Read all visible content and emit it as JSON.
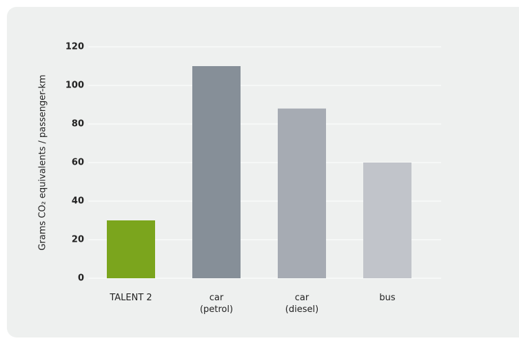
{
  "chart_data": {
    "type": "bar",
    "y_label": "Grams CO₂ equivalents / passenger-km",
    "categories": [
      "TALENT 2",
      "car\n(petrol)",
      "car\n(diesel)",
      "bus"
    ],
    "values": [
      30,
      110,
      88,
      60
    ],
    "colors": [
      "#7ba51d",
      "#868f98",
      "#a6abb3",
      "#c1c4ca"
    ],
    "ylim": [
      0,
      120
    ],
    "yticks": [
      0,
      20,
      40,
      60,
      80,
      100,
      120
    ],
    "grid": true
  }
}
